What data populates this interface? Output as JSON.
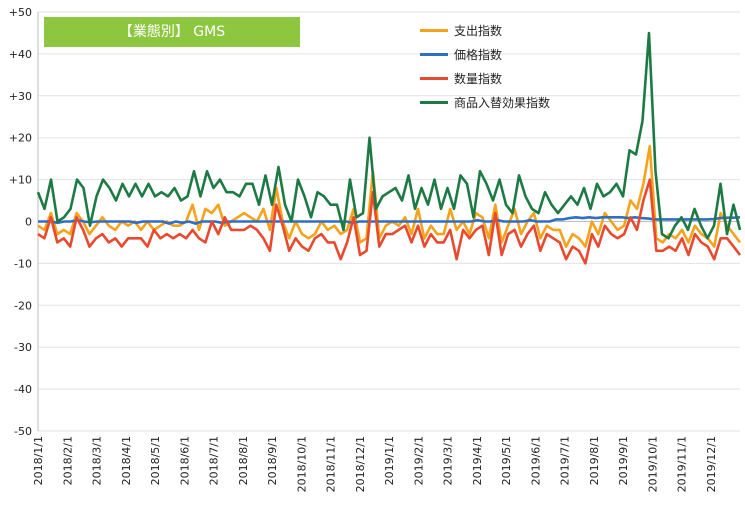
{
  "chart_data": {
    "type": "line",
    "title": "【業態別】 GMS",
    "ylim": [
      -50,
      50
    ],
    "y_ticks": [
      "+50",
      "+40",
      "+30",
      "+20",
      "+10",
      "0",
      "-10",
      "-20",
      "-30",
      "-40",
      "-50"
    ],
    "x_ticks": [
      "2018/1/1",
      "2018/2/1",
      "2018/3/1",
      "2018/4/1",
      "2018/5/1",
      "2018/6/1",
      "2018/7/1",
      "2018/8/1",
      "2018/9/1",
      "2018/10/1",
      "2018/11/1",
      "2018/12/1",
      "2019/1/1",
      "2019/2/1",
      "2019/3/1",
      "2019/4/1",
      "2019/5/1",
      "2019/6/1",
      "2019/7/1",
      "2019/8/1",
      "2019/9/1",
      "2019/10/1",
      "2019/11/1",
      "2019/12/1"
    ],
    "grid": true,
    "legend": "top-right",
    "x_note": "weekly observations from 2018/1/1 to 2019/12/31",
    "series": [
      {
        "name": "支出指数",
        "color": "#f7a21b",
        "values": [
          -1,
          -2,
          2,
          -3,
          -2,
          -3,
          2,
          0,
          -3,
          -1,
          1,
          -1,
          -2,
          0,
          -1,
          0,
          -2,
          0,
          -2,
          -1,
          0,
          -1,
          -1,
          0,
          4,
          -2,
          3,
          2,
          4,
          -1,
          0,
          1,
          2,
          1,
          0,
          3,
          -2,
          8,
          0,
          -4,
          0,
          -3,
          -4,
          -3,
          0,
          -2,
          -1,
          -3,
          -2,
          3,
          -5,
          -4,
          12,
          -4,
          -1,
          0,
          -1,
          1,
          -3,
          3,
          -4,
          -1,
          -3,
          -3,
          3,
          -2,
          0,
          -3,
          2,
          1,
          -4,
          4,
          -5,
          -1,
          3,
          -3,
          0,
          2,
          -4,
          -1,
          -2,
          -2,
          -6,
          -3,
          -4,
          -6,
          0,
          -3,
          2,
          0,
          -2,
          -1,
          5,
          3,
          9,
          18,
          -4,
          -5,
          -3,
          -4,
          -2,
          -5,
          -1,
          -3,
          -4,
          -6,
          2,
          -1,
          -3,
          -5
        ]
      },
      {
        "name": "価格指数",
        "color": "#2e6fc5",
        "values": [
          0,
          0,
          0,
          -0.3,
          0,
          0,
          0.3,
          0,
          -0.2,
          0,
          0,
          0,
          0,
          0,
          0,
          -0.3,
          0,
          0,
          0,
          0,
          -0.5,
          0,
          -0.3,
          0,
          -0.5,
          0,
          0,
          0,
          -0.3,
          0,
          0,
          0,
          0,
          0,
          0,
          0,
          0,
          0,
          0,
          0,
          0,
          0,
          0,
          0,
          0,
          0,
          0,
          0,
          -0.3,
          0,
          0,
          0,
          0,
          0,
          0,
          0,
          0,
          0,
          0,
          0,
          0,
          0,
          0,
          0,
          0,
          0,
          0,
          0.3,
          0,
          0,
          0.3,
          0,
          0,
          0,
          0,
          0.3,
          0,
          0,
          0,
          0.5,
          0.5,
          0.8,
          1,
          0.8,
          1,
          0.8,
          1,
          1,
          1,
          1,
          0.8,
          1,
          0.8,
          0.7,
          0.5,
          0.5,
          0.5,
          0.5,
          0.5,
          0.5,
          0.5,
          0.5,
          0.5,
          0.6,
          0.8,
          0.9,
          0.9,
          1
        ]
      },
      {
        "name": "数量指数",
        "color": "#e84a2f",
        "values": [
          -3,
          -4,
          1,
          -5,
          -4,
          -6,
          1,
          -2,
          -6,
          -4,
          -3,
          -5,
          -4,
          -6,
          -4,
          -4,
          -4,
          -6,
          -2,
          -4,
          -3,
          -4,
          -3,
          -4,
          -2,
          -4,
          -5,
          0,
          -3,
          1,
          -2,
          -2,
          -2,
          -1,
          -2,
          -4,
          -7,
          4,
          -1,
          -7,
          -4,
          -6,
          -7,
          -4,
          -3,
          -5,
          -5,
          -9,
          -5,
          1,
          -8,
          -7,
          7,
          -6,
          -3,
          -3,
          -2,
          -1,
          -5,
          -1,
          -6,
          -3,
          -5,
          -5,
          -2,
          -9,
          -2,
          -4,
          -2,
          -1,
          -8,
          2,
          -8,
          -3,
          -2,
          -6,
          -3,
          -1,
          -7,
          -3,
          -4,
          -5,
          -9,
          -6,
          -7,
          -10,
          -3,
          -6,
          -1,
          -3,
          -4,
          -3,
          1,
          -2,
          5,
          10,
          -7,
          -7,
          -6,
          -7,
          -4,
          -8,
          -3,
          -5,
          -6,
          -9,
          -4,
          -4,
          -6,
          -8
        ]
      },
      {
        "name": "商品入替効果指数",
        "color": "#1e7a45",
        "values": [
          7,
          3,
          10,
          0,
          1,
          3,
          10,
          8,
          -1,
          6,
          10,
          8,
          5,
          9,
          6,
          9,
          6,
          9,
          6,
          7,
          6,
          8,
          5,
          6,
          12,
          6,
          12,
          8,
          10,
          7,
          7,
          6,
          9,
          9,
          4,
          11,
          4,
          13,
          4,
          0,
          10,
          6,
          1,
          7,
          6,
          4,
          4,
          -2,
          10,
          1,
          2,
          20,
          3,
          6,
          7,
          8,
          5,
          11,
          3,
          8,
          4,
          10,
          3,
          8,
          3,
          11,
          9,
          1,
          12,
          9,
          5,
          10,
          4,
          2,
          11,
          6,
          3,
          2,
          7,
          4,
          2,
          4,
          6,
          4,
          8,
          3,
          9,
          6,
          7,
          9,
          6,
          17,
          16,
          24,
          45,
          12,
          -3,
          -4,
          -1,
          1,
          -2,
          3,
          -1,
          -4,
          -1,
          9,
          -3,
          4,
          -2
        ]
      }
    ]
  }
}
